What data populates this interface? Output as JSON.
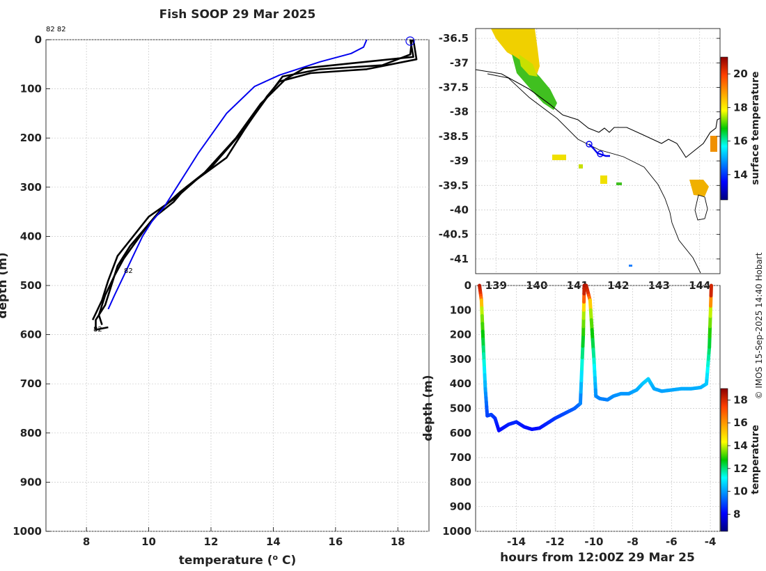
{
  "title": "Fish SOOP 29 Mar 2025",
  "credit": "© IMOS 15-Sep-2025 14:40 Hobart",
  "colors": {
    "profile_current": "#0000ee",
    "profile_previous": "#000000",
    "coast": "#000000",
    "track": "#0000ee"
  },
  "chart_data": [
    {
      "type": "line",
      "name": "profile",
      "xlabel": "temperature (o C)",
      "xlabel_parts": [
        "temperature (",
        "o",
        " C)"
      ],
      "ylabel": "depth (m)",
      "xlim": [
        6.7,
        19.0
      ],
      "ylim": [
        0,
        1000
      ],
      "xticks": [
        8,
        10,
        12,
        14,
        16,
        18
      ],
      "yticks": [
        0,
        100,
        200,
        300,
        400,
        500,
        600,
        700,
        800,
        900,
        1000
      ],
      "annotations": [
        "82 82",
        "82",
        "82"
      ],
      "series": [
        {
          "name": "current",
          "color": "#0000ee",
          "points": [
            [
              17.0,
              0
            ],
            [
              16.9,
              15
            ],
            [
              16.5,
              28
            ],
            [
              15.5,
              45
            ],
            [
              14.2,
              72
            ],
            [
              13.4,
              95
            ],
            [
              12.5,
              150
            ],
            [
              11.6,
              230
            ],
            [
              11.3,
              260
            ],
            [
              10.9,
              300
            ],
            [
              10.5,
              340
            ],
            [
              10.1,
              370
            ],
            [
              9.8,
              400
            ],
            [
              9.5,
              440
            ],
            [
              9.2,
              480
            ],
            [
              8.9,
              520
            ],
            [
              8.7,
              548
            ]
          ]
        },
        {
          "name": "previous-1",
          "color": "#000000",
          "points": [
            [
              18.45,
              0
            ],
            [
              18.4,
              30
            ],
            [
              17.5,
              52
            ],
            [
              15.5,
              60
            ],
            [
              14.3,
              75
            ],
            [
              14.0,
              100
            ],
            [
              13.2,
              170
            ],
            [
              12.5,
              240
            ],
            [
              11.2,
              300
            ],
            [
              10.8,
              330
            ],
            [
              10.2,
              360
            ],
            [
              9.8,
              390
            ],
            [
              9.4,
              420
            ],
            [
              9.0,
              460
            ],
            [
              8.8,
              500
            ],
            [
              8.6,
              540
            ],
            [
              8.3,
              570
            ],
            [
              8.3,
              590
            ],
            [
              8.7,
              585
            ]
          ]
        },
        {
          "name": "previous-2",
          "color": "#000000",
          "points": [
            [
              18.5,
              0
            ],
            [
              18.6,
              40
            ],
            [
              17.0,
              60
            ],
            [
              15.2,
              68
            ],
            [
              14.2,
              85
            ],
            [
              13.8,
              115
            ],
            [
              13.1,
              180
            ],
            [
              12.0,
              260
            ],
            [
              11.0,
              310
            ],
            [
              10.4,
              345
            ],
            [
              10.0,
              375
            ],
            [
              9.6,
              410
            ],
            [
              9.2,
              445
            ],
            [
              8.9,
              480
            ],
            [
              8.6,
              520
            ],
            [
              8.4,
              560
            ],
            [
              8.5,
              580
            ]
          ]
        },
        {
          "name": "previous-3",
          "color": "#000000",
          "points": [
            [
              18.4,
              0
            ],
            [
              18.5,
              35
            ],
            [
              16.5,
              48
            ],
            [
              15.0,
              58
            ],
            [
              14.4,
              80
            ],
            [
              13.6,
              130
            ],
            [
              12.8,
              200
            ],
            [
              11.8,
              270
            ],
            [
              10.9,
              320
            ],
            [
              10.0,
              360
            ],
            [
              9.5,
              400
            ],
            [
              9.0,
              440
            ],
            [
              8.7,
              490
            ],
            [
              8.5,
              530
            ],
            [
              8.2,
              570
            ]
          ]
        }
      ]
    },
    {
      "type": "heatmap",
      "name": "surface-temperature-map",
      "xticks": [
        139,
        140,
        141,
        142,
        143,
        144
      ],
      "yticks": [
        -36.5,
        -37,
        -37.5,
        -38,
        -38.5,
        -39,
        -39.5,
        -40,
        -40.5,
        -41
      ],
      "xticks_label": [
        "139",
        "140",
        "141",
        "142",
        "143",
        "144"
      ],
      "yticks_label": [
        "-36.5",
        "-37",
        "-37.5",
        "-38",
        "-38.5",
        "-39",
        "-39.5",
        "-40",
        "-40.5",
        "-41"
      ],
      "xlim": [
        138.5,
        144.5
      ],
      "ylim": [
        -41.3,
        -36.3
      ],
      "colorbar_label": "surface temperature",
      "colorbar_range": [
        12.5,
        21
      ],
      "colorbar_ticks": [
        14,
        16,
        18,
        20
      ],
      "track": [
        [
          141.1,
          -38.6
        ],
        [
          141.25,
          -38.72
        ],
        [
          141.35,
          -38.75
        ],
        [
          141.5,
          -38.78
        ],
        [
          141.6,
          -38.8
        ]
      ]
    },
    {
      "type": "scatter",
      "name": "depth-time-section",
      "xlabel": "hours from 12:00Z 29 Mar 25",
      "ylabel": "depth (m)",
      "xlim": [
        -16.1,
        -3.5
      ],
      "ylim": [
        0,
        1000
      ],
      "xticks": [
        -14,
        -12,
        -10,
        -8,
        -6,
        -4
      ],
      "yticks": [
        0,
        100,
        200,
        300,
        400,
        500,
        600,
        700,
        800,
        900,
        1000
      ],
      "colorbar_label": "temperature",
      "colorbar_range": [
        6.5,
        19
      ],
      "colorbar_ticks": [
        8,
        10,
        12,
        14,
        16,
        18
      ],
      "track": [
        [
          -15.9,
          0
        ],
        [
          -15.8,
          60
        ],
        [
          -15.7,
          250
        ],
        [
          -15.6,
          420
        ],
        [
          -15.5,
          530
        ],
        [
          -15.3,
          525
        ],
        [
          -15.1,
          540
        ],
        [
          -14.9,
          590
        ],
        [
          -14.7,
          580
        ],
        [
          -14.4,
          565
        ],
        [
          -14.0,
          555
        ],
        [
          -13.6,
          575
        ],
        [
          -13.2,
          585
        ],
        [
          -12.8,
          580
        ],
        [
          -12.4,
          560
        ],
        [
          -12.0,
          540
        ],
        [
          -11.5,
          520
        ],
        [
          -11.0,
          500
        ],
        [
          -10.7,
          480
        ],
        [
          -10.55,
          200
        ],
        [
          -10.5,
          0
        ],
        [
          -10.4,
          0
        ],
        [
          -10.2,
          60
        ],
        [
          -10.0,
          300
        ],
        [
          -9.9,
          450
        ],
        [
          -9.7,
          460
        ],
        [
          -9.3,
          465
        ],
        [
          -9.0,
          450
        ],
        [
          -8.6,
          440
        ],
        [
          -8.2,
          440
        ],
        [
          -7.8,
          425
        ],
        [
          -7.5,
          400
        ],
        [
          -7.2,
          380
        ],
        [
          -6.9,
          420
        ],
        [
          -6.5,
          430
        ],
        [
          -6.0,
          425
        ],
        [
          -5.5,
          420
        ],
        [
          -5.0,
          420
        ],
        [
          -4.5,
          415
        ],
        [
          -4.2,
          400
        ],
        [
          -4.05,
          250
        ],
        [
          -3.95,
          0
        ]
      ]
    }
  ]
}
